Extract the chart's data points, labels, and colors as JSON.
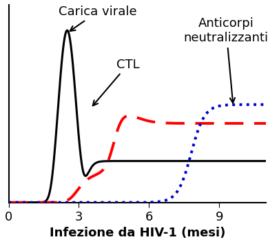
{
  "title": "",
  "xlabel": "Infezione da HIV-1 (mesi)",
  "ylabel": "",
  "xlim": [
    0,
    11
  ],
  "ylim": [
    0,
    1.05
  ],
  "xticks": [
    0,
    3,
    6,
    9
  ],
  "background_color": "#ffffff",
  "carica_virale_label": "Carica virale",
  "ctl_label": "CTL",
  "anticorpi_label": "Anticorpi\nneutralizzanti",
  "xlabel_fontsize": 13,
  "annotation_fontsize": 13
}
